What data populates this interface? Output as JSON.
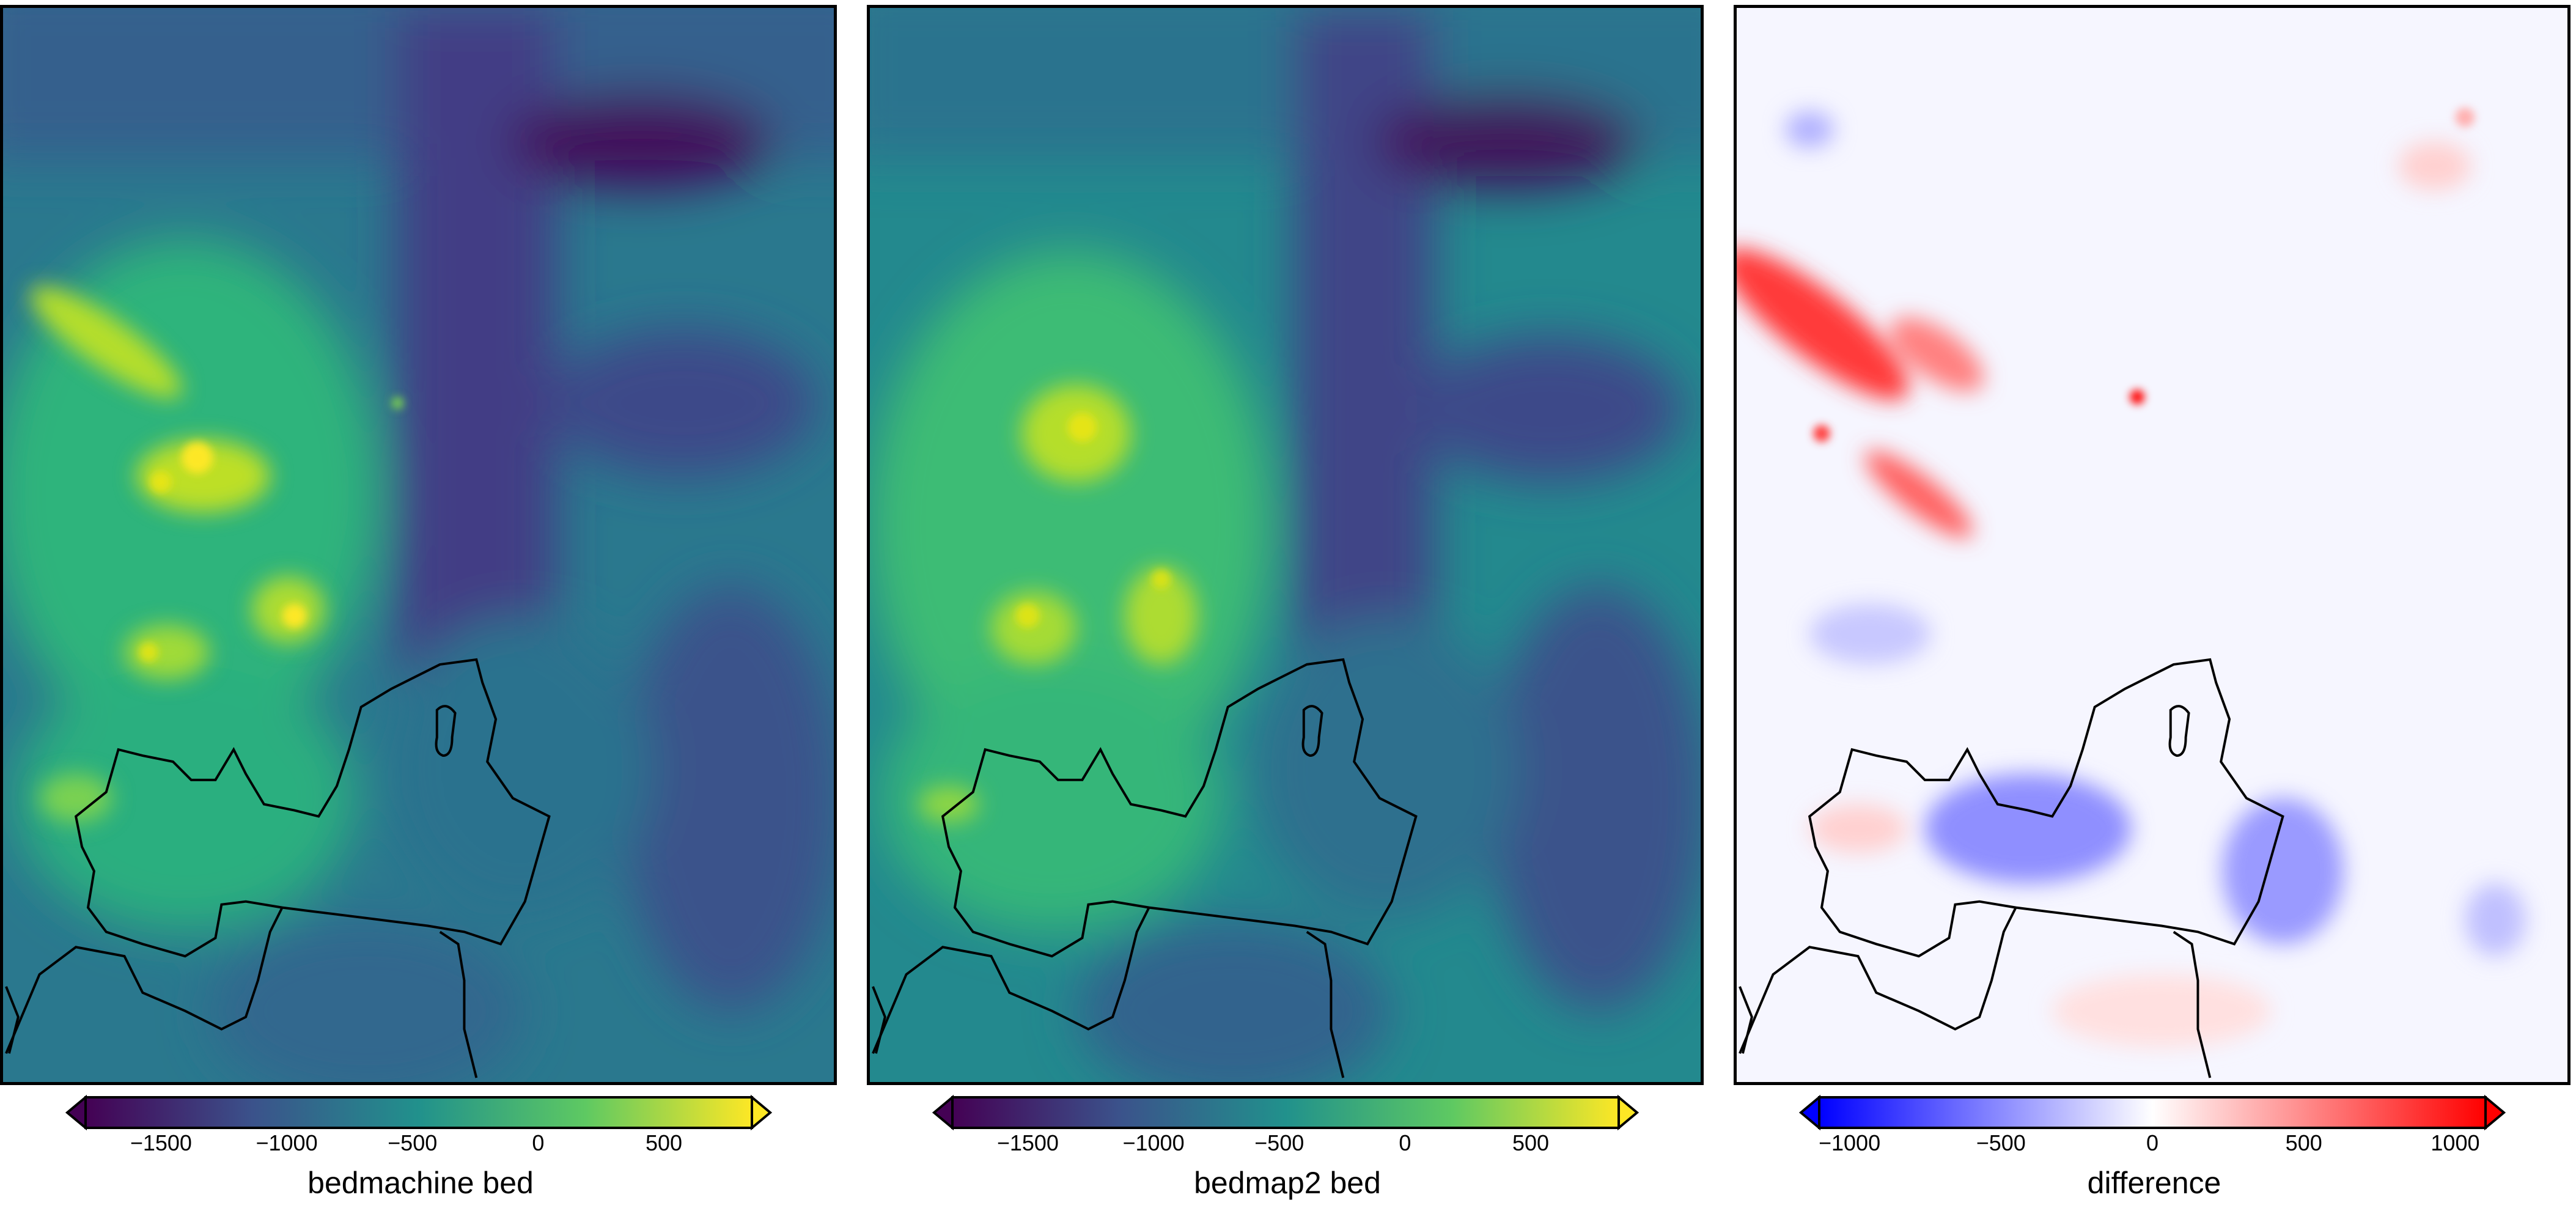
{
  "panels": [
    {
      "colormap": "viridis",
      "colorbar_label": "bedmachine bed",
      "tick_labels": [
        "−1500",
        "−1000",
        "−500",
        "0",
        "500"
      ],
      "tick_values": [
        -1500,
        -1000,
        -500,
        0,
        500
      ],
      "range": [
        -1800,
        850
      ]
    },
    {
      "colormap": "viridis",
      "colorbar_label": "bedmap2 bed",
      "tick_labels": [
        "−1500",
        "−1000",
        "−500",
        "0",
        "500"
      ],
      "tick_values": [
        -1500,
        -1000,
        -500,
        0,
        500
      ],
      "range": [
        -1800,
        850
      ]
    },
    {
      "colormap": "diverging blue-white-red",
      "colorbar_label": "difference",
      "tick_labels": [
        "−1000",
        "−500",
        "0",
        "500",
        "1000"
      ],
      "tick_values": [
        -1000,
        -500,
        0,
        500,
        1000
      ],
      "range": [
        -1100,
        1100
      ]
    }
  ],
  "colors": {
    "viridis": [
      "#440154",
      "#3b528b",
      "#21918c",
      "#5ec962",
      "#fde725"
    ],
    "diverging": [
      "#0000ff",
      "#ffffff",
      "#ff0000"
    ],
    "frame": "#000000"
  }
}
